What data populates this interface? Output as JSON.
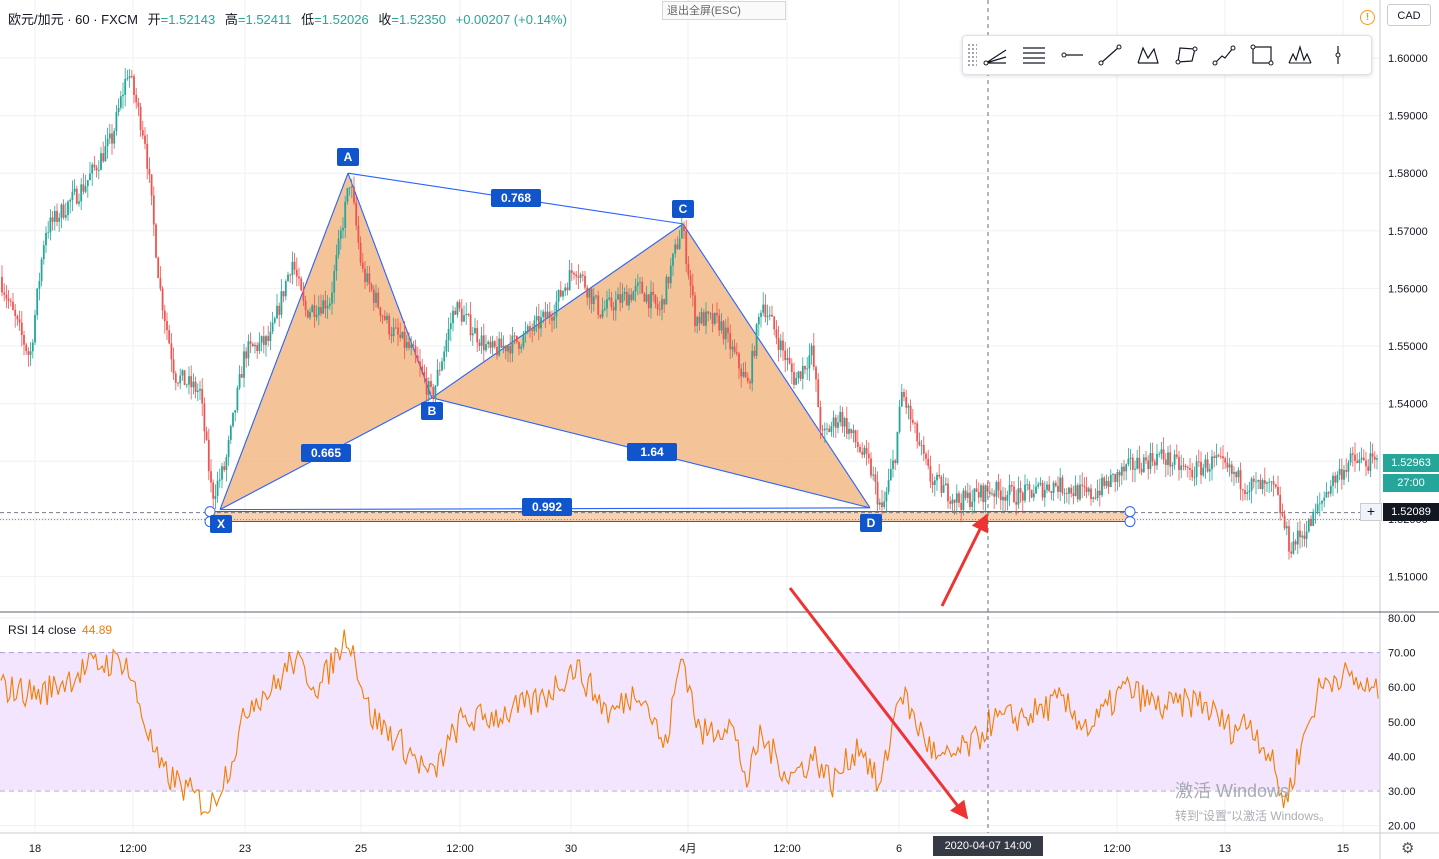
{
  "header": {
    "symbol": "欧元/加元 · 60 · FXCM",
    "open_label": "开",
    "open": "=1.52143",
    "high_label": "高",
    "high": "=1.52411",
    "low_label": "低",
    "low": "=1.52026",
    "close_label": "收",
    "close": "=1.52350",
    "change": "+0.00207 (+0.14%)",
    "exit_fullscreen": "退出全屏(ESC)",
    "currency": "CAD"
  },
  "toolbar": {
    "tools": [
      "pitchfork-icon",
      "fib-levels-icon",
      "horizontal-ray-icon",
      "trend-line-icon",
      "xabcd-pattern-icon",
      "polygon-icon",
      "path-icon",
      "rectangle-icon",
      "head-shoulders-icon",
      "vertical-line-icon"
    ]
  },
  "rsi": {
    "label": "RSI 14 close",
    "value": "44.89"
  },
  "price_tags": {
    "last_price": "1.52963",
    "countdown": "27:00",
    "cursor_price": "1.52089"
  },
  "crosshair_date": "2020-04-07  14:00",
  "watermark": {
    "line1": "激活 Windows",
    "line2": "转到“设置”以激活 Windows。"
  },
  "colors": {
    "up": "#26a69a",
    "down": "#ef5350",
    "pattern_fill": "#f2b985",
    "pattern_line": "#2962ff",
    "label_bg": "#1155cc",
    "rsi_line": "#f57c00",
    "rsi_band": "#f3e5fd"
  },
  "chart_data": [
    {
      "type": "candlestick",
      "title": "欧元/加元 · 60 · FXCM",
      "y_ticks": [
        "1.60000",
        "1.59000",
        "1.58000",
        "1.57000",
        "1.56000",
        "1.55000",
        "1.54000",
        "1.53000",
        "1.52000",
        "1.51000"
      ],
      "x_ticks": [
        "18",
        "12:00",
        "23",
        "25",
        "12:00",
        "30",
        "4月",
        "12:00",
        "6",
        "12:00",
        "13",
        "15"
      ],
      "ylim": [
        1.5064,
        1.6104
      ],
      "approx_close_path": [
        {
          "x": "18",
          "y": 1.562
        },
        {
          "x": "12:00",
          "y": 1.598
        },
        {
          "x": "",
          "y": 1.533
        },
        {
          "x": "23",
          "y": 1.579
        },
        {
          "x": "",
          "y": 1.541
        },
        {
          "x": "30",
          "y": 1.571
        },
        {
          "x": "4月",
          "y": 1.543
        },
        {
          "x": "6",
          "y": 1.521
        },
        {
          "x": "",
          "y": 1.531
        },
        {
          "x": "13",
          "y": 1.525
        },
        {
          "x": "15",
          "y": 1.5296
        }
      ],
      "harmonic_pattern": {
        "points": [
          {
            "label": "X",
            "price": 1.5216
          },
          {
            "label": "A",
            "price": 1.58
          },
          {
            "label": "B",
            "price": 1.541
          },
          {
            "label": "C",
            "price": 1.5712
          },
          {
            "label": "D",
            "price": 1.5219
          }
        ],
        "ratios": [
          "0.768",
          "0.665",
          "1.64",
          "0.992"
        ]
      }
    },
    {
      "type": "line",
      "title": "RSI 14 close",
      "y_ticks": [
        "80.00",
        "70.00",
        "60.00",
        "50.00",
        "40.00",
        "30.00",
        "20.00"
      ],
      "ylim": [
        18,
        82
      ],
      "bands": [
        30,
        70
      ],
      "series": [
        {
          "name": "RSI 14 close",
          "last": "44.89"
        }
      ]
    }
  ]
}
